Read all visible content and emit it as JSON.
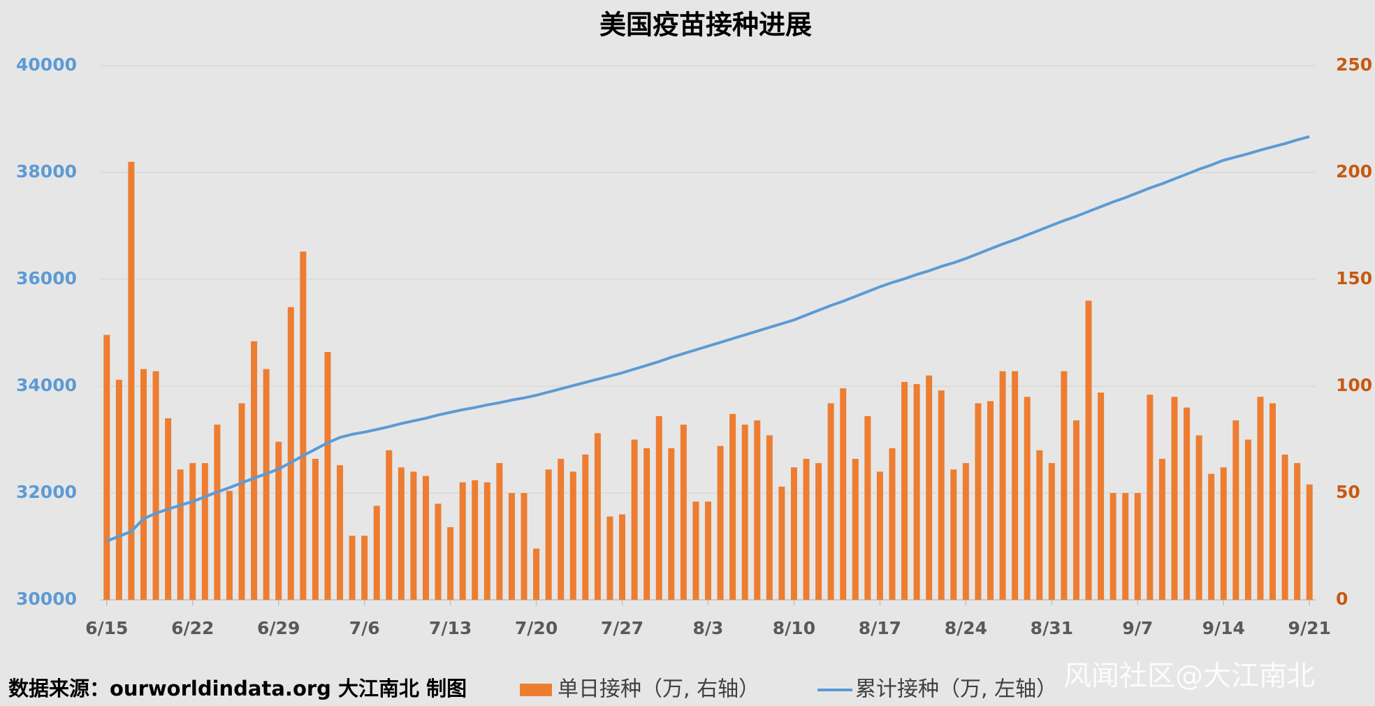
{
  "chart_data": {
    "type": "combo",
    "title": "美国疫苗接种进展",
    "source": "数据来源：ourworldindata.org 大江南北 制图",
    "watermark": "风闻社区@大江南北",
    "categories": [
      "6/15",
      null,
      null,
      null,
      null,
      null,
      null,
      "6/22",
      null,
      null,
      null,
      null,
      null,
      null,
      "6/29",
      null,
      null,
      null,
      null,
      null,
      null,
      "7/6",
      null,
      null,
      null,
      null,
      null,
      null,
      "7/13",
      null,
      null,
      null,
      null,
      null,
      null,
      "7/20",
      null,
      null,
      null,
      null,
      null,
      null,
      "7/27",
      null,
      null,
      null,
      null,
      null,
      null,
      "8/3",
      null,
      null,
      null,
      null,
      null,
      null,
      "8/10",
      null,
      null,
      null,
      null,
      null,
      null,
      "8/17",
      null,
      null,
      null,
      null,
      null,
      null,
      "8/24",
      null,
      null,
      null,
      null,
      null,
      null,
      "8/31",
      null,
      null,
      null,
      null,
      null,
      null,
      "9/7",
      null,
      null,
      null,
      null,
      null,
      null,
      "9/14",
      null,
      null,
      null,
      null,
      null,
      null,
      "9/21"
    ],
    "series": [
      {
        "name": "单日接种（万, 右轴）",
        "type": "bar",
        "axis": "y2",
        "color": "#ed7d31",
        "values": [
          124,
          103,
          205,
          108,
          107,
          85,
          61,
          64,
          64,
          82,
          51,
          92,
          121,
          108,
          74,
          137,
          163,
          66,
          116,
          63,
          30,
          30,
          44,
          70,
          62,
          60,
          58,
          45,
          34,
          55,
          56,
          55,
          64,
          50,
          50,
          24,
          61,
          66,
          60,
          68,
          78,
          39,
          40,
          75,
          71,
          86,
          71,
          82,
          46,
          46,
          72,
          87,
          82,
          84,
          77,
          53,
          62,
          66,
          64,
          92,
          99,
          66,
          86,
          60,
          71,
          102,
          101,
          105,
          98,
          61,
          64,
          92,
          93,
          107,
          107,
          95,
          70,
          64,
          107,
          84,
          140,
          97,
          50,
          50,
          50,
          96,
          66,
          95,
          90,
          77,
          59,
          62,
          84,
          75,
          95,
          92,
          68,
          64,
          54
        ]
      },
      {
        "name": "累计接种（万, 左轴）",
        "type": "line",
        "color": "#5b9bd5",
        "values": [
          31100,
          31190,
          31280,
          31520,
          31620,
          31700,
          31770,
          31840,
          31930,
          32020,
          32100,
          32190,
          32280,
          32360,
          32450,
          32570,
          32700,
          32820,
          32940,
          33040,
          33100,
          33140,
          33190,
          33240,
          33300,
          33350,
          33400,
          33460,
          33510,
          33560,
          33600,
          33650,
          33690,
          33740,
          33780,
          33830,
          33890,
          33950,
          34010,
          34070,
          34130,
          34190,
          34250,
          34320,
          34390,
          34460,
          34540,
          34610,
          34680,
          34750,
          34820,
          34890,
          34960,
          35030,
          35100,
          35170,
          35240,
          35330,
          35420,
          35510,
          35590,
          35680,
          35770,
          35860,
          35940,
          36010,
          36090,
          36160,
          36240,
          36310,
          36390,
          36480,
          36570,
          36660,
          36740,
          36830,
          36920,
          37010,
          37100,
          37180,
          37270,
          37360,
          37450,
          37530,
          37620,
          37710,
          37790,
          37880,
          37970,
          38060,
          38140,
          38230,
          38290,
          38350,
          38420,
          38480,
          38540,
          38610,
          38670
        ]
      }
    ],
    "ylim": [
      30000,
      40000
    ],
    "yticks": [
      30000,
      32000,
      34000,
      36000,
      38000,
      40000
    ],
    "ycolor": "#5b9bd5",
    "y2lim": [
      0,
      250
    ],
    "y2ticks": [
      0,
      50,
      100,
      150,
      200,
      250
    ],
    "y2color": "#c55a11",
    "grid": true
  }
}
